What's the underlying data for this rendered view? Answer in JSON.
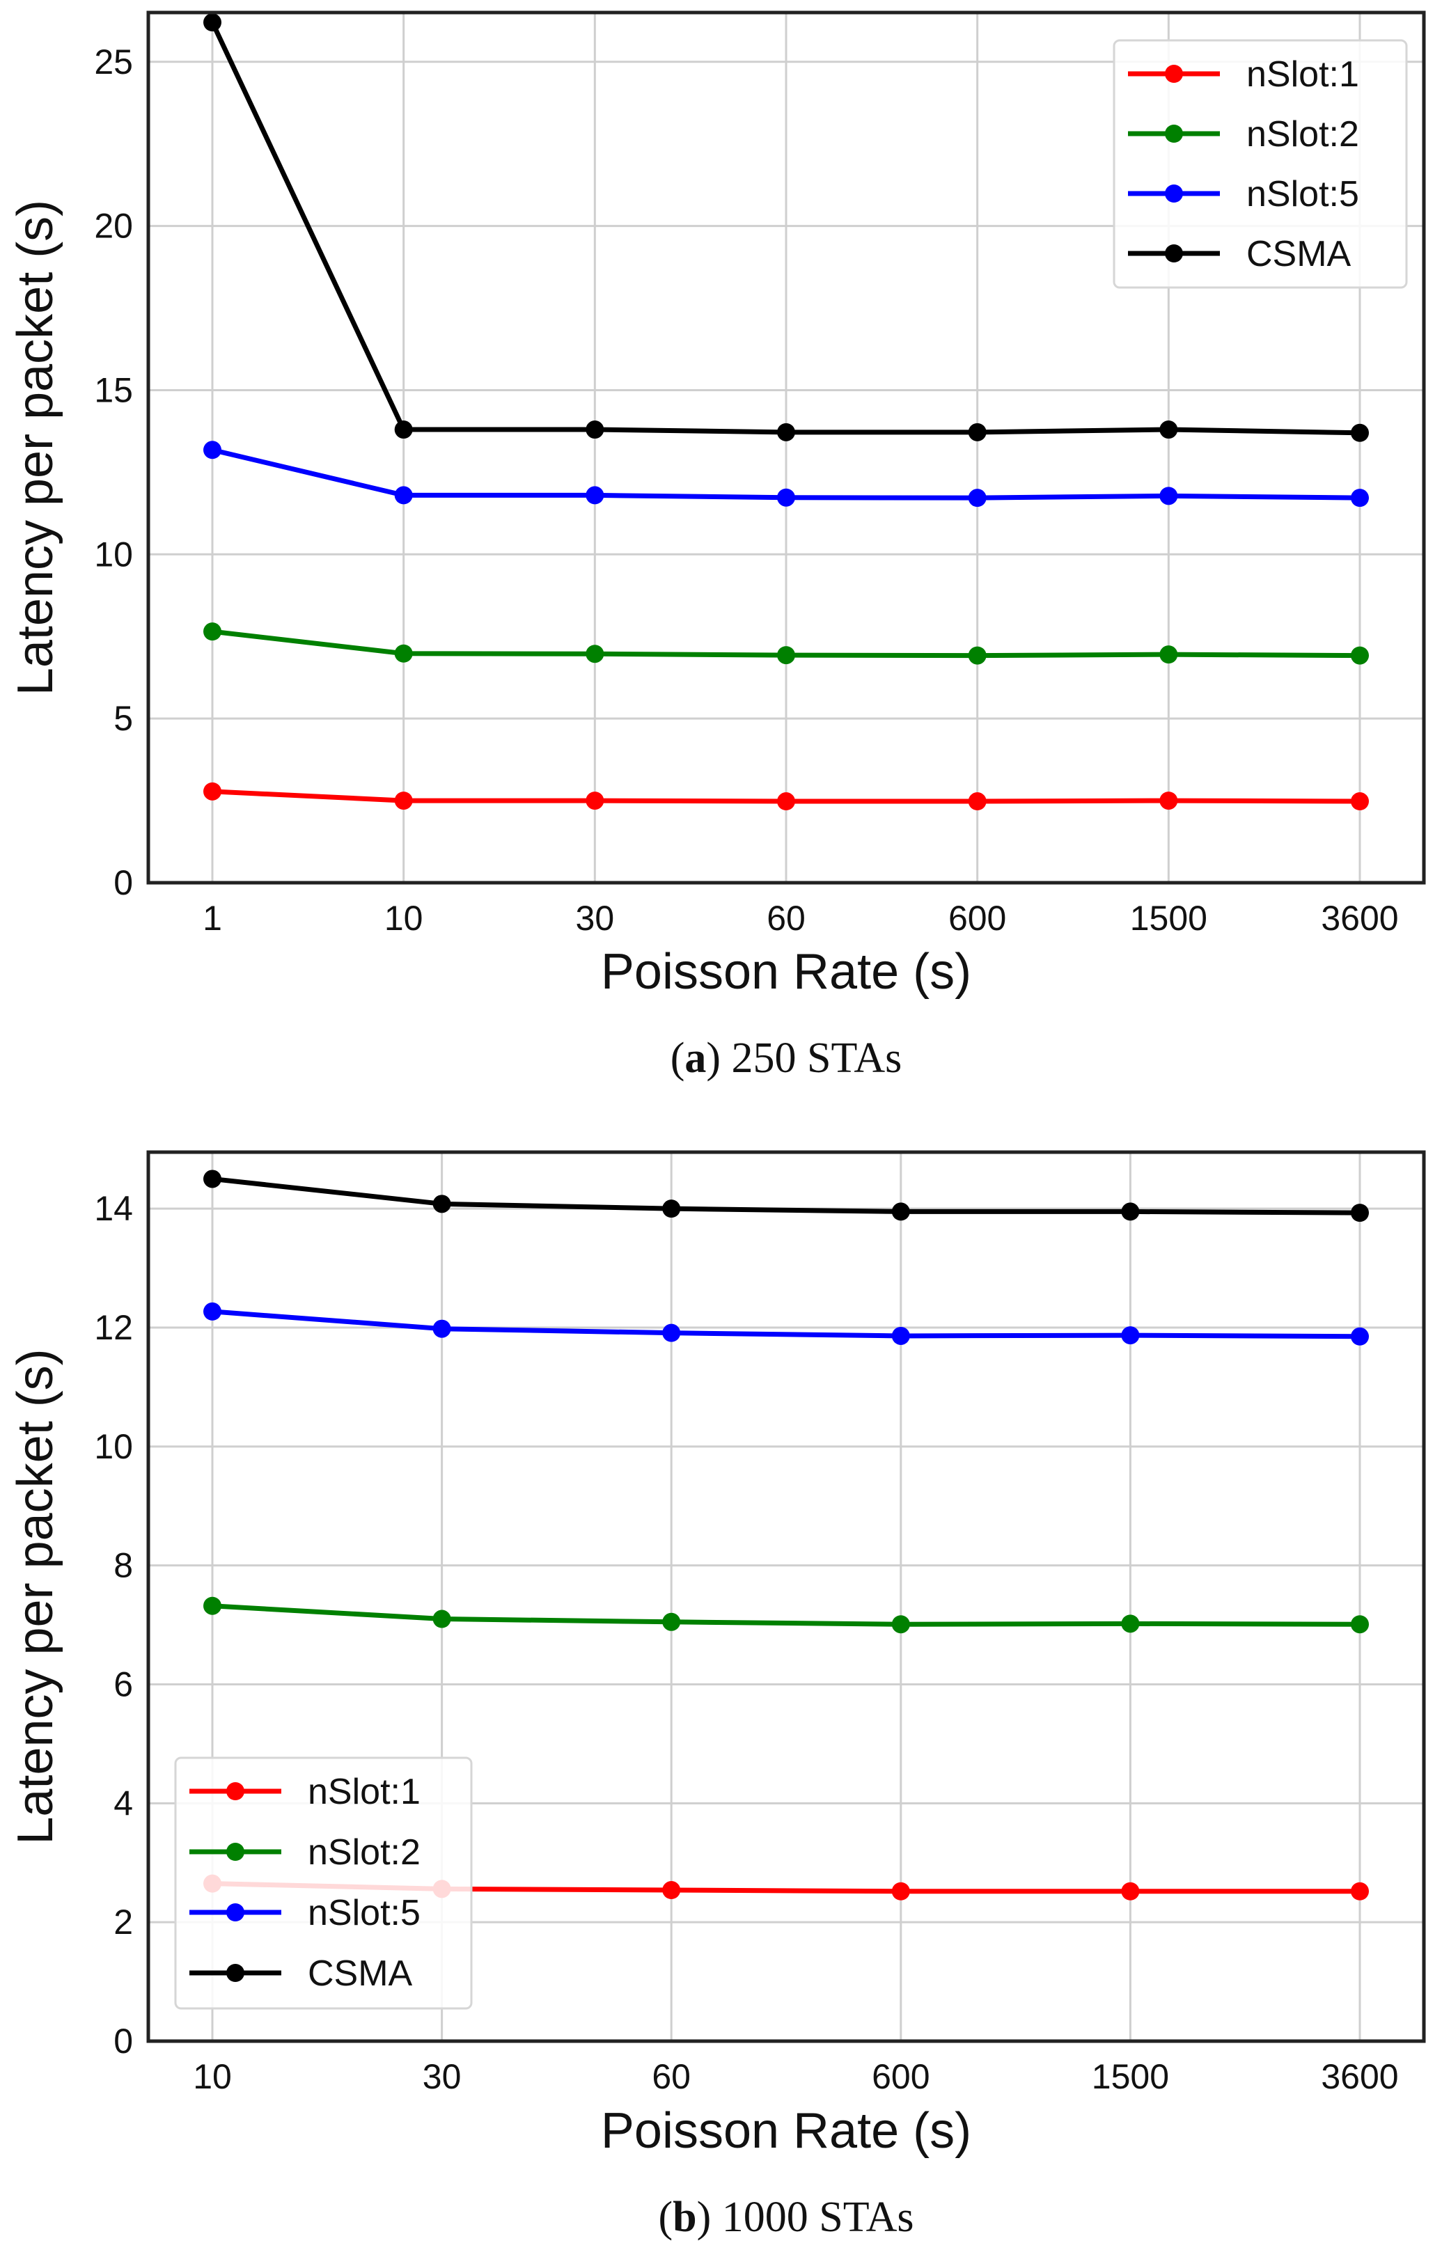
{
  "chart_data": [
    {
      "type": "line",
      "title": "",
      "xlabel": "Poisson Rate (s)",
      "ylabel": "Latency per packet (s)",
      "categories": [
        "1",
        "10",
        "30",
        "60",
        "600",
        "1500",
        "3600"
      ],
      "ylim": [
        0,
        26.5
      ],
      "yticks": [
        0,
        5,
        10,
        15,
        20,
        25
      ],
      "grid": true,
      "legend": {
        "placement": "top-right"
      },
      "series": [
        {
          "name": "nSlot:1",
          "color": "#ff0000",
          "values": [
            2.78,
            2.5,
            2.5,
            2.48,
            2.48,
            2.5,
            2.48
          ]
        },
        {
          "name": "nSlot:2",
          "color": "#008000",
          "values": [
            7.65,
            6.98,
            6.97,
            6.93,
            6.92,
            6.95,
            6.92
          ]
        },
        {
          "name": "nSlot:5",
          "color": "#0000ff",
          "values": [
            13.18,
            11.8,
            11.8,
            11.73,
            11.72,
            11.78,
            11.72
          ]
        },
        {
          "name": "CSMA",
          "color": "#000000",
          "values": [
            26.2,
            13.8,
            13.8,
            13.72,
            13.72,
            13.8,
            13.7
          ]
        }
      ],
      "caption": {
        "label": "a",
        "text": " 250 STAs",
        "open": "(",
        "close": ")"
      }
    },
    {
      "type": "line",
      "title": "",
      "xlabel": "Poisson Rate (s)",
      "ylabel": "Latency per packet (s)",
      "categories": [
        "10",
        "30",
        "60",
        "600",
        "1500",
        "3600"
      ],
      "ylim": [
        0,
        14.95
      ],
      "yticks": [
        0,
        2,
        4,
        6,
        8,
        10,
        12,
        14
      ],
      "grid": true,
      "legend": {
        "placement": "bottom-left"
      },
      "series": [
        {
          "name": "nSlot:1",
          "color": "#ff0000",
          "values": [
            2.65,
            2.56,
            2.54,
            2.52,
            2.52,
            2.52
          ]
        },
        {
          "name": "nSlot:2",
          "color": "#008000",
          "values": [
            7.32,
            7.1,
            7.05,
            7.01,
            7.02,
            7.01
          ]
        },
        {
          "name": "nSlot:5",
          "color": "#0000ff",
          "values": [
            12.27,
            11.98,
            11.91,
            11.86,
            11.87,
            11.85
          ]
        },
        {
          "name": "CSMA",
          "color": "#000000",
          "values": [
            14.5,
            14.08,
            14.0,
            13.95,
            13.95,
            13.93
          ]
        }
      ],
      "caption": {
        "label": "b",
        "text": " 1000 STAs",
        "open": "(",
        "close": ")"
      }
    }
  ]
}
